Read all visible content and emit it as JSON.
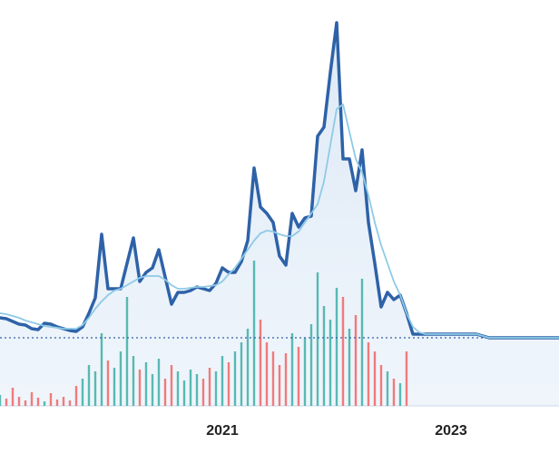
{
  "chart_data": {
    "type": "line",
    "categories": [
      null,
      null,
      null,
      null,
      null,
      null,
      null,
      null,
      null,
      null,
      null,
      null,
      null,
      null,
      null,
      null,
      null,
      null,
      null,
      null,
      null,
      null,
      null,
      null,
      null,
      null,
      null,
      null,
      null,
      null,
      null,
      null,
      null,
      null,
      null,
      "2021",
      null,
      null,
      null,
      null,
      null,
      null,
      null,
      null,
      null,
      null,
      null,
      null,
      null,
      null,
      null,
      null,
      null,
      null,
      null,
      null,
      null,
      null,
      null,
      null,
      null,
      null,
      null,
      null,
      null,
      null,
      null,
      null,
      null,
      null,
      null,
      "2023",
      null,
      null,
      null,
      null,
      null,
      null,
      null,
      null,
      null,
      null,
      null,
      null,
      null,
      null,
      null,
      null,
      null
    ],
    "ylim": [
      0,
      430
    ],
    "series": [
      {
        "color": "#2e62a8",
        "values": [
          100,
          99,
          96,
          93,
          92,
          88,
          87,
          94,
          93,
          90,
          88,
          86,
          85,
          90,
          105,
          122,
          192,
          132,
          132,
          132,
          160,
          188,
          140,
          150,
          155,
          175,
          145,
          115,
          128,
          128,
          130,
          134,
          132,
          130,
          138,
          155,
          150,
          150,
          162,
          185,
          265,
          222,
          215,
          205,
          168,
          158,
          215,
          200,
          210,
          212,
          300,
          310,
          370,
          425,
          275,
          275,
          240,
          285,
          205,
          160,
          112,
          128,
          120,
          125,
          105,
          82,
          82,
          82,
          82,
          82,
          82,
          82,
          82,
          82,
          82,
          82,
          80,
          78,
          78,
          78,
          78,
          78,
          78,
          78,
          78,
          78,
          78,
          78,
          78
        ]
      },
      {
        "color": "#8ecae6",
        "values": [
          105,
          104,
          102,
          100,
          97,
          95,
          93,
          91,
          90,
          89,
          88,
          88,
          88,
          92,
          100,
          110,
          118,
          125,
          130,
          132,
          136,
          140,
          144,
          146,
          146,
          146,
          142,
          136,
          132,
          132,
          133,
          134,
          134,
          135,
          136,
          140,
          148,
          155,
          165,
          175,
          185,
          193,
          196,
          195,
          192,
          190,
          190,
          195,
          205,
          215,
          225,
          250,
          290,
          330,
          335,
          305,
          275,
          260,
          235,
          205,
          180,
          160,
          140,
          125,
          105,
          90,
          84,
          82,
          82,
          82,
          82,
          82,
          82,
          82,
          82,
          82,
          80,
          78,
          78,
          78,
          78,
          78,
          78,
          78,
          78,
          78,
          78,
          78,
          78
        ]
      },
      {
        "type": "bar",
        "up_color": "#26a69a",
        "down_color": "#ef5350",
        "values": [
          12,
          8,
          20,
          10,
          6,
          15,
          9,
          5,
          14,
          7,
          10,
          6,
          22,
          30,
          45,
          38,
          80,
          50,
          42,
          60,
          120,
          55,
          40,
          48,
          35,
          52,
          30,
          45,
          38,
          28,
          40,
          35,
          30,
          42,
          38,
          55,
          48,
          60,
          70,
          85,
          160,
          95,
          70,
          60,
          45,
          58,
          80,
          65,
          75,
          90,
          147,
          110,
          95,
          130,
          120,
          85,
          100,
          140,
          70,
          60,
          45,
          38,
          30,
          25,
          60,
          null,
          null,
          null,
          null,
          null,
          null,
          null,
          null,
          null,
          null,
          null,
          null,
          null,
          null,
          null,
          null,
          null,
          null,
          null,
          null,
          null,
          null,
          null,
          null
        ]
      }
    ],
    "ref_line": 78,
    "area_color": "#dbe8f5"
  }
}
